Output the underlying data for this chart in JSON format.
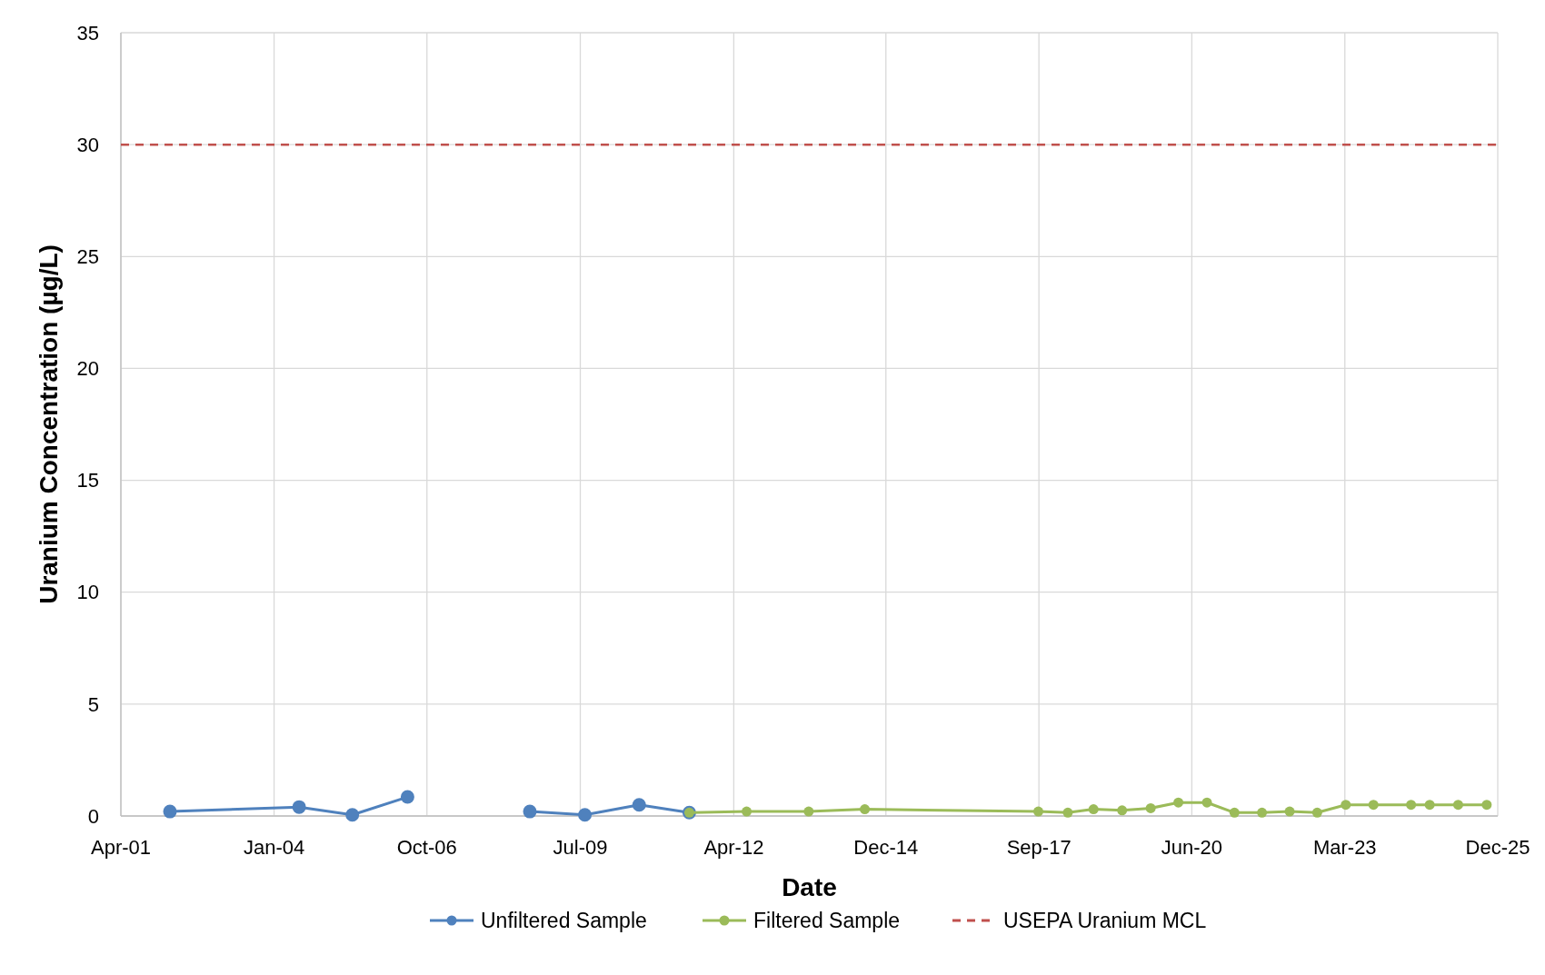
{
  "chart_data": {
    "type": "line",
    "xlabel": "Date",
    "ylabel": "Uranium Concentration (µg/L)",
    "xlim": [
      "2001-04-10",
      "2025-12-06"
    ],
    "xticks": [
      {
        "value": "2001-04-10",
        "label": "Apr-01"
      },
      {
        "value": "2004-01-07",
        "label": "Jan-04"
      },
      {
        "value": "2006-10-03",
        "label": "Oct-06"
      },
      {
        "value": "2009-07-02",
        "label": "Jul-09"
      },
      {
        "value": "2012-04-01",
        "label": "Apr-12"
      },
      {
        "value": "2014-12-22",
        "label": "Dec-14"
      },
      {
        "value": "2017-09-18",
        "label": "Sep-17"
      },
      {
        "value": "2020-06-14",
        "label": "Jun-20"
      },
      {
        "value": "2023-03-12",
        "label": "Mar-23"
      },
      {
        "value": "2025-12-06",
        "label": "Dec-25"
      }
    ],
    "ylim": [
      0,
      35
    ],
    "yticks": [
      0,
      5,
      10,
      15,
      20,
      25,
      30,
      35
    ],
    "grid": true,
    "legend": "bottom",
    "marker": "circle",
    "series": [
      {
        "name": "Unfiltered Sample",
        "color": "#4f81bd",
        "x": [
          "2002-02-25",
          "2004-06-19",
          "2005-06-02",
          "2006-05-29",
          "2007-07-01",
          "2008-08-06",
          "2009-08-01",
          "2010-07-22",
          "2011-06-15"
        ],
        "values": [
          0.2,
          0.4,
          0.05,
          0.85,
          null,
          0.2,
          0.05,
          0.5,
          0.15
        ]
      },
      {
        "name": "Filtered Sample",
        "color": "#9bbb59",
        "x": [
          "2011-06-15",
          "2012-06-24",
          "2013-08-04",
          "2014-08-06",
          "2017-09-14",
          "2018-03-26",
          "2018-09-10",
          "2019-03-16",
          "2019-09-19",
          "2020-03-18",
          "2020-09-21",
          "2021-03-20",
          "2021-09-16",
          "2022-03-16",
          "2022-09-12",
          "2023-03-18",
          "2023-09-15",
          "2024-05-18",
          "2024-09-17",
          "2025-03-22",
          "2025-09-25"
        ],
        "values": [
          0.15,
          0.2,
          0.2,
          0.3,
          0.2,
          0.15,
          0.3,
          0.25,
          0.35,
          0.6,
          0.6,
          0.15,
          0.15,
          0.2,
          0.15,
          0.5,
          0.5,
          0.5,
          0.5,
          0.5,
          0.5
        ]
      }
    ],
    "ref_lines": [
      {
        "axis": "y",
        "value": 30,
        "label": "USEPA Uranium MCL",
        "color": "#c0504d",
        "line_style": "dashed"
      }
    ]
  }
}
